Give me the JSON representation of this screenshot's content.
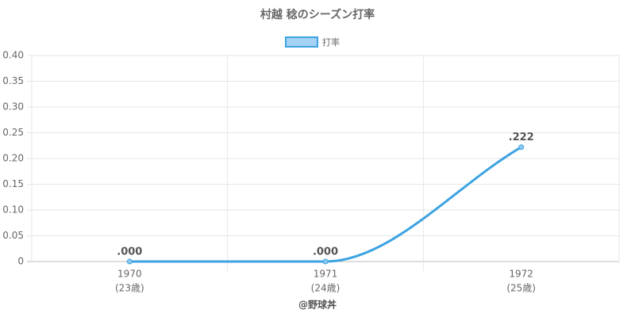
{
  "chart_data": {
    "type": "line",
    "title": "村越 稔のシーズン打率",
    "categories": [
      "1970",
      "1971",
      "1972"
    ],
    "ages": [
      "(23歳)",
      "(24歳)",
      "(25歳)"
    ],
    "series": [
      {
        "name": "打率",
        "color": "#3da3e2",
        "values": [
          0,
          0,
          0.222
        ],
        "value_labels": [
          ".000",
          ".000",
          ".222"
        ]
      }
    ],
    "ylim": [
      0,
      0.4
    ],
    "yticks": [
      0,
      0.05,
      {
        "value": 0.1,
        "label": "0.10"
      },
      0.15,
      {
        "value": 0.2,
        "label": "0.20"
      },
      0.25,
      {
        "value": 0.3,
        "label": "0.30"
      },
      0.35,
      {
        "value": 0.4,
        "label": "0.40"
      }
    ],
    "grid": true,
    "legend": "top",
    "footer": "@野球丼"
  }
}
